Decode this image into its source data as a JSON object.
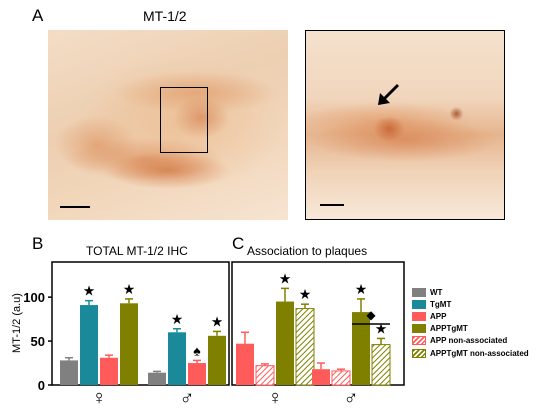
{
  "panel_a": {
    "letter": "A",
    "title": "MT-1/2"
  },
  "panel_b": {
    "letter": "B",
    "title": "TOTAL MT-1/2 IHC"
  },
  "panel_c": {
    "letter": "C",
    "title": "Association to plaques"
  },
  "colors": {
    "WT": "#808080",
    "TgMT": "#1a8a9a",
    "APP": "#ff5b5b",
    "APPTgMT": "#808000"
  },
  "legend": [
    {
      "label": "WT",
      "style": "solid",
      "color": "#808080"
    },
    {
      "label": "TgMT",
      "style": "solid",
      "color": "#1a8a9a"
    },
    {
      "label": "APP",
      "style": "solid",
      "color": "#ff5b5b"
    },
    {
      "label": "APPTgMT",
      "style": "solid",
      "color": "#808000"
    },
    {
      "label": "APP non-associated",
      "style": "hatch-red",
      "color": "#ff5b5b"
    },
    {
      "label": "APPTgMT non-associated",
      "style": "hatch-olive",
      "color": "#808000"
    }
  ],
  "chart_data": [
    {
      "type": "bar",
      "title": "TOTAL MT-1/2 IHC",
      "ylabel": "MT-1/2 (a.u)",
      "ylim": [
        0,
        140
      ],
      "yticks": [
        0,
        50,
        100
      ],
      "categories": [
        "♀",
        "♂"
      ],
      "series": [
        {
          "name": "WT",
          "values": [
            28,
            14
          ],
          "errors": [
            3,
            1.5
          ],
          "markers": [
            "",
            ""
          ]
        },
        {
          "name": "TgMT",
          "values": [
            91,
            60
          ],
          "errors": [
            5,
            4
          ],
          "markers": [
            "★",
            "★"
          ]
        },
        {
          "name": "APP",
          "values": [
            31,
            25
          ],
          "errors": [
            3,
            3
          ],
          "markers": [
            "",
            "♠"
          ]
        },
        {
          "name": "APPTgMT",
          "values": [
            93,
            56
          ],
          "errors": [
            5,
            5
          ],
          "markers": [
            "★",
            "★"
          ]
        }
      ]
    },
    {
      "type": "bar",
      "title": "Association to plaques",
      "ylim": [
        0,
        140
      ],
      "categories": [
        "♀",
        "♂"
      ],
      "series": [
        {
          "name": "APP",
          "values": [
            47,
            18
          ],
          "errors": [
            13,
            7
          ],
          "markers": [
            "",
            ""
          ]
        },
        {
          "name": "APP non-associated",
          "values": [
            22,
            16
          ],
          "errors": [
            2,
            2
          ],
          "markers": [
            "",
            ""
          ]
        },
        {
          "name": "APPTgMT",
          "values": [
            95,
            83
          ],
          "errors": [
            15,
            15
          ],
          "markers": [
            "★",
            "★"
          ]
        },
        {
          "name": "APPTgMT non-associated",
          "values": [
            87,
            46
          ],
          "errors": [
            5,
            7
          ],
          "markers": [
            "★",
            "★"
          ]
        }
      ],
      "annotation": "◆"
    }
  ]
}
